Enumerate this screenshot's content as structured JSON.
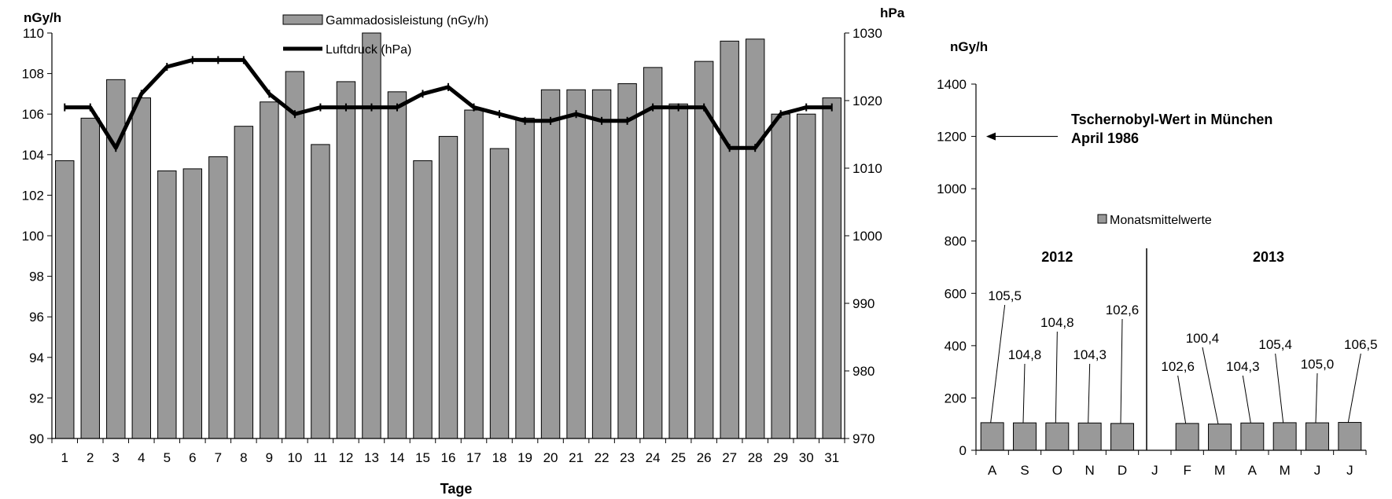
{
  "chart_data": [
    {
      "type": "bar",
      "y_left_label": "nGy/h",
      "y_right_label": "hPa",
      "xlabel": "Tage",
      "ylim_left": [
        90,
        110
      ],
      "ylim_right": [
        970,
        1030
      ],
      "left_ticks": [
        90,
        92,
        94,
        96,
        98,
        100,
        102,
        104,
        106,
        108,
        110
      ],
      "right_ticks": [
        970,
        980,
        990,
        1000,
        1010,
        1020,
        1030
      ],
      "categories": [
        "1",
        "2",
        "3",
        "4",
        "5",
        "6",
        "7",
        "8",
        "9",
        "10",
        "11",
        "12",
        "13",
        "14",
        "15",
        "16",
        "17",
        "18",
        "19",
        "20",
        "21",
        "22",
        "23",
        "24",
        "25",
        "26",
        "27",
        "28",
        "29",
        "30",
        "31"
      ],
      "series": [
        {
          "name": "Gammadosisleistung (nGy/h)",
          "kind": "bar",
          "axis": "left",
          "color": "#999999",
          "values": [
            103.7,
            105.8,
            107.7,
            106.8,
            103.2,
            103.3,
            103.9,
            105.4,
            106.6,
            108.1,
            104.5,
            107.6,
            110.0,
            107.1,
            103.7,
            104.9,
            106.2,
            104.3,
            105.8,
            107.2,
            107.2,
            107.2,
            107.5,
            108.3,
            106.5,
            108.6,
            109.6,
            109.7,
            106.0,
            106.0,
            106.8
          ]
        },
        {
          "name": "Luftdruck (hPa)",
          "kind": "line",
          "axis": "right",
          "color": "#000000",
          "values": [
            1019,
            1019,
            1013,
            1021,
            1025,
            1026,
            1026,
            1026,
            1021,
            1018,
            1019,
            1019,
            1019,
            1019,
            1021,
            1022,
            1019,
            1018,
            1017,
            1017,
            1018,
            1017,
            1017,
            1019,
            1019,
            1019,
            1013,
            1013,
            1018,
            1019,
            1019
          ]
        }
      ],
      "legend_position": "top-center"
    },
    {
      "type": "bar",
      "ylabel": "nGy/h",
      "ylim": [
        0,
        1400
      ],
      "y_ticks": [
        0,
        200,
        400,
        600,
        800,
        1000,
        1200,
        1400
      ],
      "categories": [
        "A",
        "S",
        "O",
        "N",
        "D",
        "J",
        "F",
        "M",
        "A",
        "M",
        "J",
        "J"
      ],
      "values": [
        105.5,
        104.8,
        104.8,
        104.3,
        102.6,
        null,
        102.6,
        100.4,
        104.3,
        105.4,
        105.0,
        106.5
      ],
      "data_labels": [
        "105,5",
        "104,8",
        "104,8",
        "104,3",
        "102,6",
        "",
        "102,6",
        "100,4",
        "104,3",
        "105,4",
        "105,0",
        "106,5"
      ],
      "legend": "Monatsmittelwerte",
      "color": "#999999",
      "year_labels": [
        {
          "text": "2012",
          "category_index": 2
        },
        {
          "text": "2013",
          "category_index": 8.5
        }
      ],
      "annotation": {
        "line1": "Tschernobyl-Wert in München",
        "line2": "April 1986",
        "value": 1200
      }
    }
  ]
}
